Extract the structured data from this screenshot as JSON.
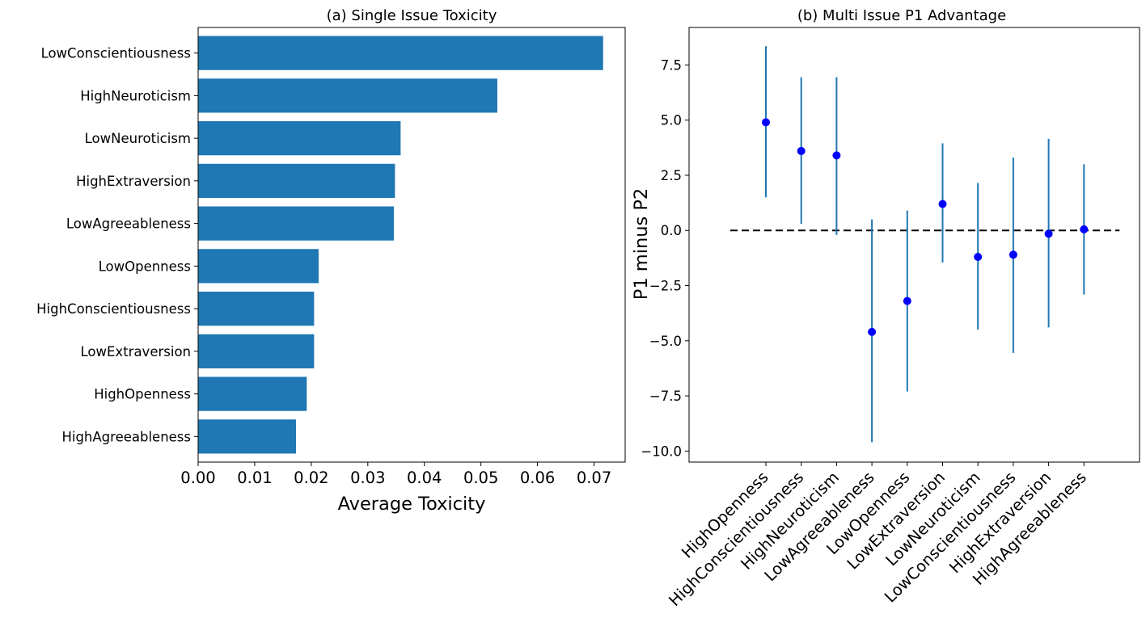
{
  "chart_data": [
    {
      "type": "bar",
      "orientation": "horizontal",
      "title": "(a) Single Issue Toxicity",
      "xlabel": "Average Toxicity",
      "ylabel": "",
      "xlim": [
        0,
        0.0755
      ],
      "xticks": [
        "0.00",
        "0.01",
        "0.02",
        "0.03",
        "0.04",
        "0.05",
        "0.06",
        "0.07"
      ],
      "categories": [
        "LowConscientiousness",
        "HighNeuroticism",
        "LowNeuroticism",
        "HighExtraversion",
        "LowAgreeableness",
        "LowOpenness",
        "HighConscientiousness",
        "LowExtraversion",
        "HighOpenness",
        "HighAgreeableness"
      ],
      "values": [
        0.0716,
        0.0529,
        0.0358,
        0.0348,
        0.0346,
        0.0213,
        0.0205,
        0.0205,
        0.0192,
        0.0173
      ],
      "bar_color": "#1f77b4",
      "grid": false
    },
    {
      "type": "scatter",
      "errorbars": true,
      "title": "(b) Multi Issue P1 Advantage",
      "xlabel": "",
      "ylabel": "P1 minus P2",
      "ylim": [
        -10.5,
        9.2
      ],
      "yticks": [
        "7.5",
        "5.0",
        "2.5",
        "0.0",
        "−2.5",
        "−5.0",
        "−7.5",
        "−10.0"
      ],
      "ytick_values": [
        7.5,
        5.0,
        2.5,
        0.0,
        -2.5,
        -5.0,
        -7.5,
        -10.0
      ],
      "categories": [
        "HighOpenness",
        "HighConscientiousness",
        "HighNeuroticism",
        "LowAgreeableness",
        "LowOpenness",
        "LowExtraversion",
        "LowNeuroticism",
        "LowConscientiousness",
        "HighExtraversion",
        "HighAgreeableness"
      ],
      "values": [
        4.9,
        3.6,
        3.4,
        -4.6,
        -3.2,
        1.2,
        -1.2,
        -1.1,
        -0.15,
        0.05
      ],
      "err_low": [
        1.5,
        0.3,
        -0.2,
        -9.6,
        -7.3,
        -1.45,
        -4.5,
        -5.55,
        -4.4,
        -2.9
      ],
      "err_high": [
        8.35,
        6.95,
        6.95,
        0.5,
        0.9,
        3.95,
        2.15,
        3.3,
        4.15,
        3.0
      ],
      "reference_line": 0.0,
      "point_color": "#0000ff",
      "errorbar_color": "#1f77b4",
      "grid": false
    }
  ]
}
